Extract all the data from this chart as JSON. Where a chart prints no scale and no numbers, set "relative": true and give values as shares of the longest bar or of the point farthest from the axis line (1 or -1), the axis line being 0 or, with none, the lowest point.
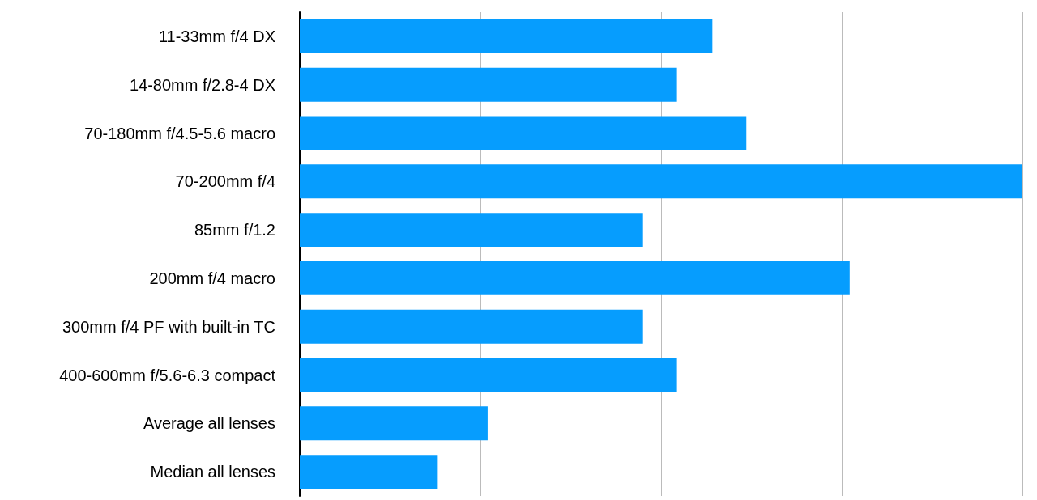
{
  "chart_data": {
    "type": "bar",
    "orientation": "horizontal",
    "relative": true,
    "grid": "x",
    "categories": [
      "11-33mm f/4 DX",
      "14-80mm f/2.8-4 DX",
      "70-180mm f/4.5-5.6 macro",
      "70-200mm f/4",
      "85mm f/1.2",
      "200mm f/4 macro",
      "300mm f/4 PF with built-in TC",
      "400-600mm f/5.6-6.3 compact",
      "Average all lenses",
      "Median all lenses"
    ],
    "values": [
      0.571,
      0.522,
      0.618,
      1,
      0.475,
      0.761,
      0.475,
      0.522,
      0.26,
      0.191
    ],
    "color": "#069dfe"
  }
}
